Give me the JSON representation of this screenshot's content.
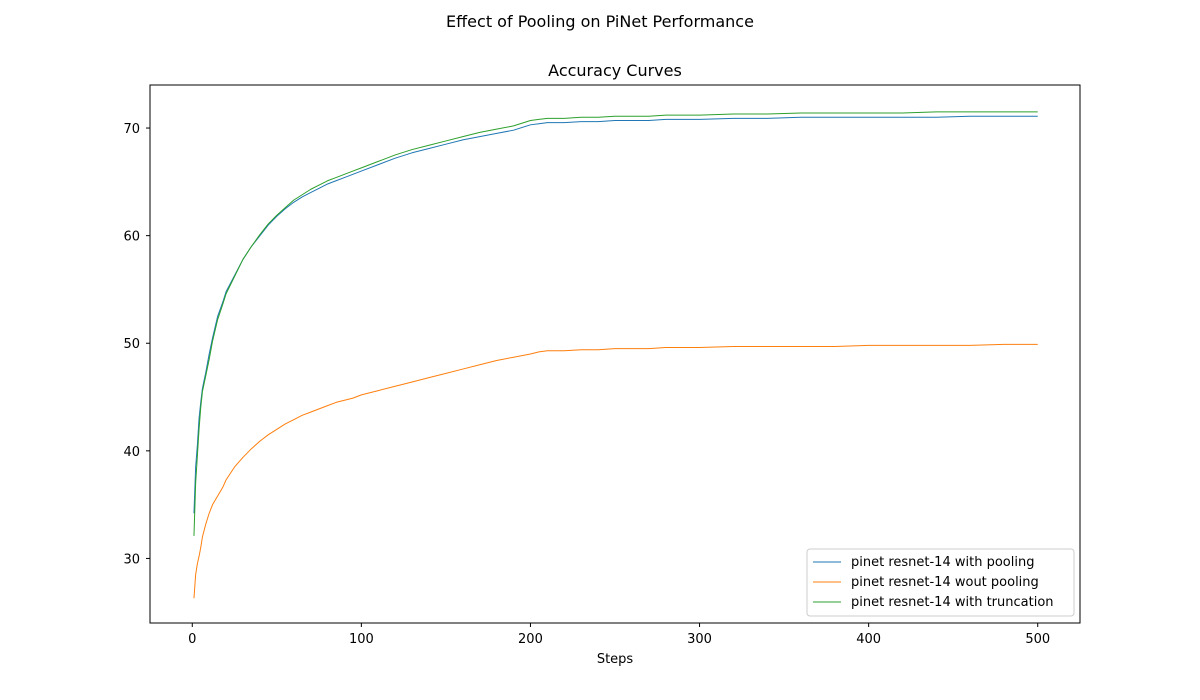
{
  "figure": {
    "suptitle": "Effect of Pooling on PiNet Performance"
  },
  "chart_data": {
    "type": "line",
    "title": "Accuracy Curves",
    "xlabel": "Steps",
    "ylabel": "",
    "xlim": [
      -25,
      525
    ],
    "ylim": [
      24,
      74
    ],
    "xticks": [
      0,
      100,
      200,
      300,
      400,
      500
    ],
    "yticks": [
      30,
      40,
      50,
      60,
      70
    ],
    "grid": false,
    "legend_position": "lower-right",
    "series": [
      {
        "name": "pinet resnet-14 with pooling",
        "color": "#1f77b4",
        "x": [
          1,
          2,
          3,
          4,
          5,
          6,
          8,
          10,
          12,
          15,
          18,
          20,
          25,
          30,
          35,
          40,
          45,
          50,
          55,
          60,
          65,
          70,
          75,
          80,
          85,
          90,
          95,
          100,
          110,
          120,
          130,
          140,
          150,
          160,
          170,
          180,
          190,
          200,
          205,
          210,
          220,
          230,
          240,
          250,
          260,
          270,
          280,
          290,
          300,
          320,
          340,
          360,
          380,
          400,
          420,
          440,
          460,
          480,
          500
        ],
        "y": [
          34.2,
          38.5,
          40.5,
          43.0,
          44.5,
          45.8,
          47.3,
          49.0,
          50.5,
          52.5,
          53.8,
          54.8,
          56.3,
          57.8,
          59.0,
          60.0,
          61.0,
          61.8,
          62.5,
          63.1,
          63.6,
          64.0,
          64.4,
          64.8,
          65.1,
          65.4,
          65.7,
          66.0,
          66.6,
          67.2,
          67.7,
          68.1,
          68.5,
          68.9,
          69.2,
          69.5,
          69.8,
          70.3,
          70.4,
          70.5,
          70.5,
          70.6,
          70.6,
          70.7,
          70.7,
          70.7,
          70.8,
          70.8,
          70.8,
          70.9,
          70.9,
          71.0,
          71.0,
          71.0,
          71.0,
          71.0,
          71.1,
          71.1,
          71.1
        ]
      },
      {
        "name": "pinet resnet-14 wout pooling",
        "color": "#ff7f0e",
        "x": [
          1,
          2,
          3,
          4,
          5,
          6,
          8,
          10,
          12,
          15,
          18,
          20,
          25,
          30,
          35,
          40,
          45,
          50,
          55,
          60,
          65,
          70,
          75,
          80,
          85,
          90,
          95,
          100,
          110,
          120,
          130,
          140,
          150,
          160,
          170,
          180,
          190,
          200,
          205,
          210,
          220,
          230,
          240,
          250,
          260,
          270,
          280,
          290,
          300,
          320,
          340,
          360,
          380,
          400,
          420,
          440,
          460,
          480,
          500
        ],
        "y": [
          26.3,
          28.5,
          29.5,
          30.2,
          31.0,
          32.0,
          33.2,
          34.2,
          35.0,
          35.8,
          36.6,
          37.3,
          38.5,
          39.4,
          40.2,
          40.9,
          41.5,
          42.0,
          42.5,
          42.9,
          43.3,
          43.6,
          43.9,
          44.2,
          44.5,
          44.7,
          44.9,
          45.2,
          45.6,
          46.0,
          46.4,
          46.8,
          47.2,
          47.6,
          48.0,
          48.4,
          48.7,
          49.0,
          49.2,
          49.3,
          49.3,
          49.4,
          49.4,
          49.5,
          49.5,
          49.5,
          49.6,
          49.6,
          49.6,
          49.7,
          49.7,
          49.7,
          49.7,
          49.8,
          49.8,
          49.8,
          49.8,
          49.9,
          49.9
        ]
      },
      {
        "name": "pinet resnet-14 with truncation",
        "color": "#2ca02c",
        "x": [
          1,
          2,
          3,
          4,
          5,
          6,
          8,
          10,
          12,
          15,
          18,
          20,
          25,
          30,
          35,
          40,
          45,
          50,
          55,
          60,
          65,
          70,
          75,
          80,
          85,
          90,
          95,
          100,
          110,
          120,
          130,
          140,
          150,
          160,
          170,
          180,
          190,
          200,
          205,
          210,
          220,
          230,
          240,
          250,
          260,
          270,
          280,
          290,
          300,
          320,
          340,
          360,
          380,
          400,
          420,
          440,
          460,
          480,
          500
        ],
        "y": [
          32.1,
          37.0,
          39.5,
          42.0,
          44.0,
          45.5,
          47.0,
          48.5,
          50.2,
          52.2,
          53.6,
          54.6,
          56.2,
          57.8,
          59.0,
          60.1,
          61.1,
          61.9,
          62.6,
          63.3,
          63.8,
          64.3,
          64.7,
          65.1,
          65.4,
          65.7,
          66.0,
          66.3,
          66.9,
          67.5,
          68.0,
          68.4,
          68.8,
          69.2,
          69.6,
          69.9,
          70.2,
          70.7,
          70.8,
          70.9,
          70.9,
          71.0,
          71.0,
          71.1,
          71.1,
          71.1,
          71.2,
          71.2,
          71.2,
          71.3,
          71.3,
          71.4,
          71.4,
          71.4,
          71.4,
          71.5,
          71.5,
          71.5,
          71.5
        ]
      }
    ]
  }
}
